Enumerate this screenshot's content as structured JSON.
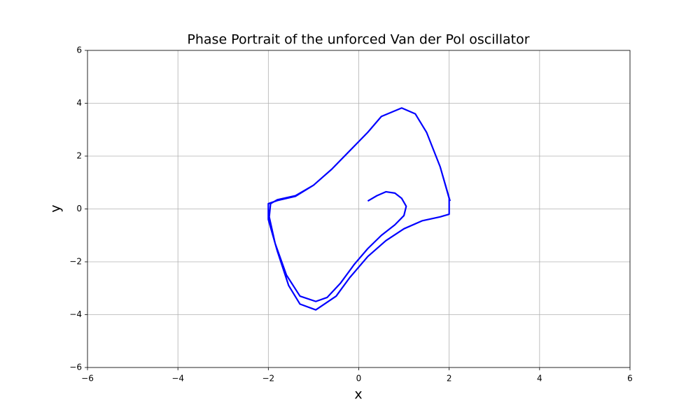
{
  "chart_data": {
    "type": "line",
    "title": "Phase Portrait of the unforced Van der Pol oscillator",
    "xlabel": "x",
    "ylabel": "y",
    "xlim": [
      -6,
      6
    ],
    "ylim": [
      -6,
      6
    ],
    "xticks": [
      {
        "value": -6,
        "label": "−6"
      },
      {
        "value": -4,
        "label": "−4"
      },
      {
        "value": -2,
        "label": "−2"
      },
      0,
      2,
      4,
      6
    ],
    "yticks": [
      {
        "value": -6,
        "label": "−6"
      },
      {
        "value": -4,
        "label": "−4"
      },
      {
        "value": -2,
        "label": "−2"
      },
      0,
      2,
      4,
      6
    ],
    "grid": true,
    "series": [
      {
        "color": "#0000ff",
        "x": [
          0.2,
          0.4,
          0.6,
          0.8,
          0.95,
          1.05,
          1.0,
          0.8,
          0.5,
          0.2,
          -0.1,
          -0.4,
          -0.7,
          -0.95,
          -1.3,
          -1.6,
          -1.85,
          -1.98,
          -1.95,
          -1.8,
          -1.4,
          -1.0,
          -0.6,
          -0.2,
          0.2,
          0.5,
          0.95,
          1.25,
          1.5,
          1.8,
          2.0,
          2.0,
          1.8,
          1.4,
          1.0,
          0.6,
          0.2,
          -0.2,
          -0.5,
          -0.95,
          -1.3,
          -1.55,
          -1.8,
          -2.0,
          -2.0,
          -1.8,
          -1.4,
          -1.0,
          -0.6,
          -0.2,
          0.2,
          0.5,
          0.95,
          1.25,
          1.5,
          1.8,
          2.02
        ],
        "values": [
          0.3,
          0.5,
          0.65,
          0.6,
          0.4,
          0.1,
          -0.25,
          -0.6,
          -1.0,
          -1.5,
          -2.1,
          -2.8,
          -3.35,
          -3.5,
          -3.3,
          -2.5,
          -1.3,
          -0.3,
          0.2,
          0.35,
          0.5,
          0.9,
          1.5,
          2.2,
          2.9,
          3.5,
          3.82,
          3.6,
          2.9,
          1.6,
          0.4,
          -0.2,
          -0.3,
          -0.45,
          -0.75,
          -1.2,
          -1.8,
          -2.6,
          -3.3,
          -3.82,
          -3.6,
          -2.9,
          -1.6,
          -0.4,
          0.2,
          0.32,
          0.48,
          0.9,
          1.5,
          2.2,
          2.9,
          3.5,
          3.82,
          3.6,
          2.9,
          1.6,
          0.3
        ]
      }
    ]
  }
}
